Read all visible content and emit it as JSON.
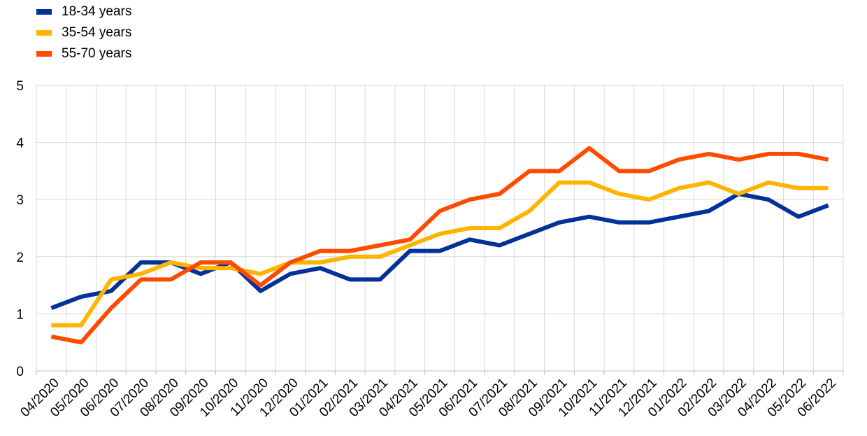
{
  "chart_data": {
    "type": "line",
    "title": "",
    "xlabel": "",
    "ylabel": "",
    "ylim": [
      0,
      5
    ],
    "yticks": [
      0,
      1,
      2,
      3,
      4,
      5
    ],
    "grid": true,
    "legend_position": "top-left",
    "categories": [
      "04/2020",
      "05/2020",
      "06/2020",
      "07/2020",
      "08/2020",
      "09/2020",
      "10/2020",
      "11/2020",
      "12/2020",
      "01/2021",
      "02/2021",
      "03/2021",
      "04/2021",
      "05/2021",
      "06/2021",
      "07/2021",
      "08/2021",
      "09/2021",
      "10/2021",
      "11/2021",
      "12/2021",
      "01/2022",
      "02/2022",
      "03/2022",
      "04/2022",
      "05/2022",
      "06/2022"
    ],
    "series": [
      {
        "name": "18-34 years",
        "color": "#003299",
        "values": [
          1.1,
          1.3,
          1.4,
          1.9,
          1.9,
          1.7,
          1.9,
          1.4,
          1.7,
          1.8,
          1.6,
          1.6,
          2.1,
          2.1,
          2.3,
          2.2,
          2.4,
          2.6,
          2.7,
          2.6,
          2.6,
          2.7,
          2.8,
          3.1,
          3.0,
          2.7,
          2.9
        ]
      },
      {
        "name": "35-54 years",
        "color": "#FFB400",
        "values": [
          0.8,
          0.8,
          1.6,
          1.7,
          1.9,
          1.8,
          1.8,
          1.7,
          1.9,
          1.9,
          2.0,
          2.0,
          2.2,
          2.4,
          2.5,
          2.5,
          2.8,
          3.3,
          3.3,
          3.1,
          3.0,
          3.2,
          3.3,
          3.1,
          3.3,
          3.2,
          3.2
        ]
      },
      {
        "name": "55-70 years",
        "color": "#FF4B00",
        "values": [
          0.6,
          0.5,
          1.1,
          1.6,
          1.6,
          1.9,
          1.9,
          1.5,
          1.9,
          2.1,
          2.1,
          2.2,
          2.3,
          2.8,
          3.0,
          3.1,
          3.5,
          3.5,
          3.9,
          3.5,
          3.5,
          3.7,
          3.8,
          3.7,
          3.8,
          3.8,
          3.7
        ]
      }
    ]
  }
}
